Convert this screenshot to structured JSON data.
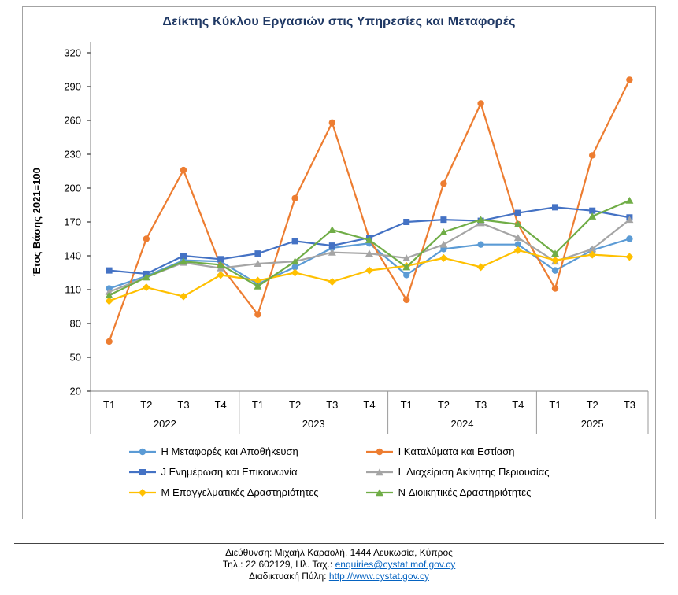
{
  "chart_data": {
    "type": "line",
    "title": "Δείκτης Κύκλου Εργασιών στις Υπηρεσίες και Μεταφορές",
    "ylabel": "Έτος Βάσης 2021=100",
    "ylim": [
      20,
      320
    ],
    "ytick_step": 30,
    "grid": false,
    "legend_position": "bottom",
    "title_color": "#1f3864",
    "x_groups": [
      {
        "year": "2022",
        "quarters": [
          "T1",
          "T2",
          "T3",
          "T4"
        ]
      },
      {
        "year": "2023",
        "quarters": [
          "T1",
          "T2",
          "T3",
          "T4"
        ]
      },
      {
        "year": "2024",
        "quarters": [
          "T1",
          "T2",
          "T3",
          "T4"
        ]
      },
      {
        "year": "2025",
        "quarters": [
          "T1",
          "T2",
          "T3"
        ]
      }
    ],
    "categories": [
      "2022-T1",
      "2022-T2",
      "2022-T3",
      "2022-T4",
      "2023-T1",
      "2023-T2",
      "2023-T3",
      "2023-T4",
      "2024-T1",
      "2024-T2",
      "2024-T3",
      "2024-T4",
      "2025-T1",
      "2025-T2",
      "2025-T3"
    ],
    "series": [
      {
        "name": "H Μεταφορές και Αποθήκευση",
        "color": "#5B9BD5",
        "marker": "circle",
        "values": [
          111,
          122,
          136,
          135,
          115,
          130,
          147,
          151,
          123,
          146,
          150,
          150,
          127,
          145,
          155
        ]
      },
      {
        "name": "I Καταλύματα και Εστίαση",
        "color": "#ED7D31",
        "marker": "circle",
        "values": [
          64,
          155,
          216,
          131,
          88,
          191,
          258,
          155,
          101,
          204,
          275,
          168,
          111,
          229,
          296
        ]
      },
      {
        "name": "J Ενημέρωση και Επικοινωνία",
        "color": "#4472C4",
        "marker": "square",
        "values": [
          127,
          124,
          140,
          137,
          142,
          153,
          149,
          156,
          170,
          172,
          171,
          178,
          183,
          180,
          174
        ]
      },
      {
        "name": "L Διαχείριση Ακίνητης Περιουσίας",
        "color": "#A5A5A5",
        "marker": "triangle",
        "values": [
          108,
          121,
          134,
          129,
          133,
          135,
          143,
          142,
          138,
          150,
          169,
          156,
          135,
          146,
          172
        ]
      },
      {
        "name": "M Επαγγελματικές Δραστηριότητες",
        "color": "#FFC000",
        "marker": "diamond",
        "values": [
          100,
          112,
          104,
          123,
          118,
          125,
          117,
          127,
          131,
          138,
          130,
          145,
          136,
          141,
          139
        ]
      },
      {
        "name": "N Διοικητικές Δραστηριότητες",
        "color": "#70AD47",
        "marker": "triangle",
        "values": [
          105,
          121,
          135,
          132,
          113,
          135,
          163,
          154,
          130,
          161,
          172,
          168,
          142,
          175,
          189
        ]
      }
    ]
  },
  "footer": {
    "address": "Διεύθυνση: Μιχαήλ Καραολή, 1444 Λευκωσία, Κύπρος",
    "phone_prefix": "Τηλ.: 22 602129, Ηλ. Ταχ.: ",
    "email": "enquiries@cystat.mof.gov.cy",
    "portal_prefix": "Διαδικτυακή Πύλη: ",
    "url": "http://www.cystat.gov.cy"
  }
}
